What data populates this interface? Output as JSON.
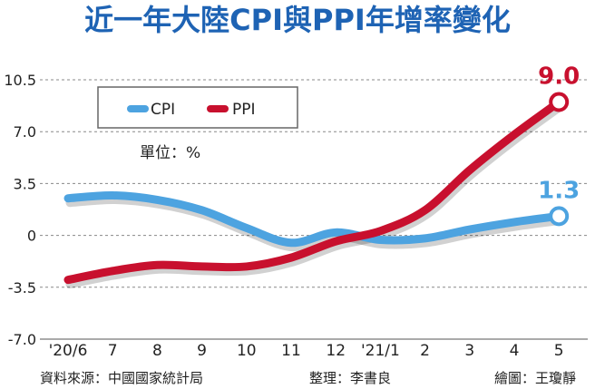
{
  "title": "近一年大陸CPI與PPI年增率變化",
  "footer": {
    "source": "資料來源：中國國家統計局",
    "editor": "整理：李書良",
    "artist": "繪圖：王瓊靜"
  },
  "chart_data": {
    "type": "line",
    "title": "近一年大陸CPI與PPI年增率變化",
    "unit_label": "單位：%",
    "categories": [
      "'20/6",
      "7",
      "8",
      "9",
      "10",
      "11",
      "12",
      "'21/1",
      "2",
      "3",
      "4",
      "5"
    ],
    "yticks": [
      "10.5",
      "7.0",
      "3.5",
      "0",
      "-3.5",
      "-7.0"
    ],
    "ylim": [
      -7.0,
      10.5
    ],
    "grid": "horizontal-dashed",
    "legend_position": "top-left",
    "series": [
      {
        "name": "CPI",
        "color": "#4da3e0",
        "values": [
          2.5,
          2.7,
          2.4,
          1.7,
          0.5,
          -0.5,
          0.2,
          -0.3,
          -0.2,
          0.4,
          0.9,
          1.3
        ]
      },
      {
        "name": "PPI",
        "color": "#c8102e",
        "values": [
          -3.0,
          -2.4,
          -2.0,
          -2.1,
          -2.1,
          -1.5,
          -0.4,
          0.3,
          1.7,
          4.4,
          6.8,
          9.0
        ]
      }
    ],
    "end_labels": [
      {
        "series": "CPI",
        "text": "1.3",
        "color": "#4da3e0"
      },
      {
        "series": "PPI",
        "text": "9.0",
        "color": "#c8102e"
      }
    ]
  }
}
